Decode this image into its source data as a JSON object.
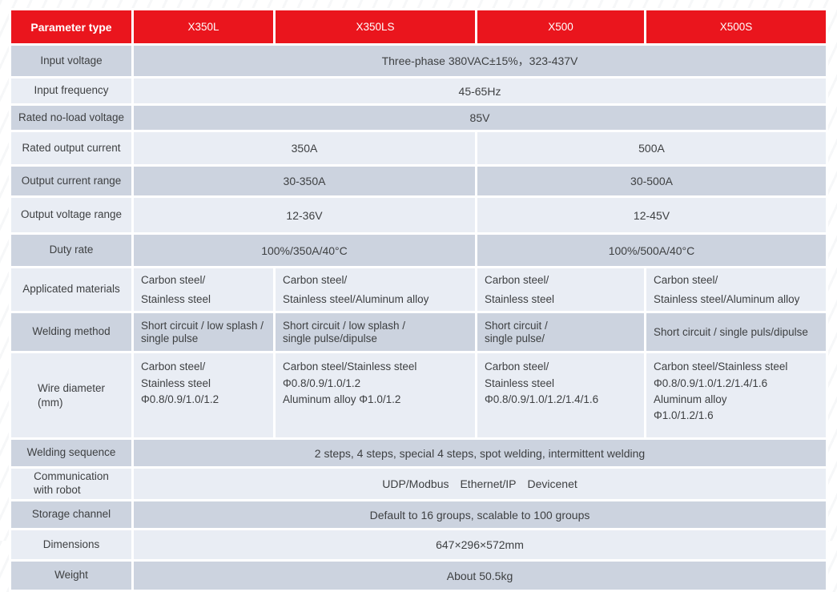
{
  "colors": {
    "header_red": "#ea151d",
    "row_dark": "#ccd3df",
    "row_light": "#e9edf4",
    "text": "#3e4042",
    "header_text": "#ffffff"
  },
  "table": {
    "header": {
      "param_label": "Parameter type",
      "models": [
        "X350L",
        "X350LS",
        "X500",
        "X500S"
      ]
    },
    "rows": [
      {
        "label": "Input voltage",
        "value": "Three-phase 380VAC±15%，323-437V"
      },
      {
        "label": "Input frequency",
        "value": "45-65Hz"
      },
      {
        "label": "Rated no-load voltage",
        "value": "85V"
      },
      {
        "label": "Rated output current",
        "values": [
          "350A",
          "500A"
        ]
      },
      {
        "label": "Output current range",
        "values": [
          "30-350A",
          "30-500A"
        ]
      },
      {
        "label": "Output voltage range",
        "values": [
          "12-36V",
          "12-45V"
        ]
      },
      {
        "label": "Duty rate",
        "values": [
          "100%/350A/40°C",
          "100%/500A/40°C"
        ]
      },
      {
        "label": "Applicated  materials",
        "values": [
          "Carbon steel/\nStainless steel",
          "Carbon steel/\nStainless steel/Aluminum alloy",
          "Carbon steel/\nStainless steel",
          "Carbon steel/\nStainless steel/Aluminum alloy"
        ]
      },
      {
        "label": "Welding method",
        "values": [
          "Short circuit / low splash /\nsingle pulse",
          "Short circuit / low splash /\nsingle pulse/dipulse",
          "Short circuit /\nsingle pulse/",
          "Short circuit / single puls/dipulse"
        ]
      },
      {
        "label": "Wire diameter\n(mm)",
        "values": [
          "Carbon steel/\nStainless steel\nΦ0.8/0.9/1.0/1.2",
          "Carbon steel/Stainless steel\nΦ0.8/0.9/1.0/1.2\nAluminum alloy Φ1.0/1.2",
          "Carbon steel/\nStainless steel\nΦ0.8/0.9/1.0/1.2/1.4/1.6",
          "Carbon steel/Stainless steel\nΦ0.8/0.9/1.0/1.2/1.4/1.6\nAluminum alloy\nΦ1.0/1.2/1.6"
        ]
      },
      {
        "label": "Welding sequence",
        "value": "2 steps, 4 steps, special 4 steps, spot welding, intermittent welding"
      },
      {
        "label": "Communication\nwith robot",
        "value": "UDP/Modbus Ethernet/IP Devicenet"
      },
      {
        "label": "Storage channel",
        "value": "Default to 16 groups, scalable to 100 groups"
      },
      {
        "label": "Dimensions",
        "value": "647×296×572mm"
      },
      {
        "label": "Weight",
        "value": "About 50.5kg"
      }
    ]
  }
}
